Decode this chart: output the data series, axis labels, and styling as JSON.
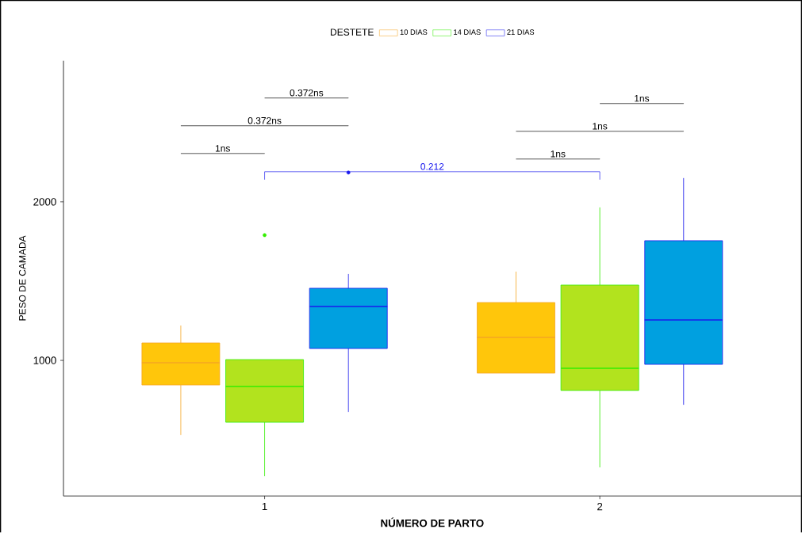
{
  "chart_data": {
    "type": "box",
    "xlabel": "NÚMERO DE PARTO",
    "ylabel": "PESO DE CAMADA",
    "legend_title": "DESTETE",
    "categories": [
      "1",
      "2"
    ],
    "series": [
      {
        "name": "10 DIAS",
        "color": "#ffc60b",
        "boxes": [
          {
            "low": 530,
            "q1": 845,
            "median": 985,
            "q3": 1110,
            "high": 1220
          },
          {
            "low": 920,
            "q1": 920,
            "median": 1145,
            "q3": 1365,
            "high": 1560
          }
        ]
      },
      {
        "name": "14 DIAS",
        "color": "#b2e31e",
        "boxes": [
          {
            "low": 270,
            "q1": 610,
            "median": 835,
            "q3": 1005,
            "high": 1005,
            "outliers": [
              1790
            ]
          },
          {
            "low": 325,
            "q1": 810,
            "median": 950,
            "q3": 1475,
            "high": 1965
          }
        ]
      },
      {
        "name": "21 DIAS",
        "color": "#00a0e0",
        "boxes": [
          {
            "low": 675,
            "q1": 1075,
            "median": 1340,
            "q3": 1455,
            "high": 1545,
            "outliers": [
              2185
            ]
          },
          {
            "low": 720,
            "q1": 975,
            "median": 1255,
            "q3": 1755,
            "high": 2150
          }
        ]
      }
    ],
    "ylim": [
      145,
      2890
    ],
    "yticks": [
      1000,
      2000
    ],
    "grid": false,
    "legend": "top",
    "annotations": [
      "1ns",
      "0.372ns",
      "0.372ns",
      "0.212",
      "1ns",
      "1ns",
      "1ns"
    ]
  }
}
